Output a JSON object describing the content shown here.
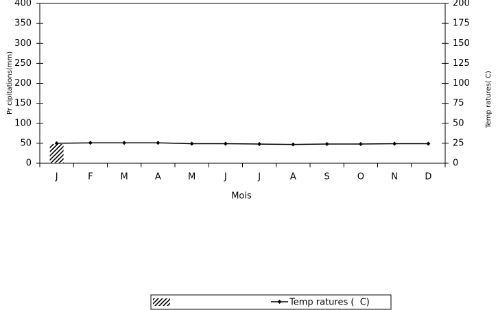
{
  "chart_data": {
    "type": "bar-line",
    "x_label": "Mois",
    "y_label": "Pr cipitations(mm)",
    "y2_label": "Temp ratures( C)",
    "categories": [
      "J",
      "F",
      "M",
      "A",
      "M",
      "J",
      "J",
      "A",
      "S",
      "O",
      "N",
      "D"
    ],
    "series": [
      {
        "type": "bar",
        "color": "#000000",
        "values": [
          48,
          0,
          0,
          0,
          0,
          0,
          0,
          0,
          0,
          0,
          0,
          0
        ]
      },
      {
        "type": "line",
        "name": "Temp ratures (  C)",
        "color": "#000000",
        "axis": "y2",
        "values": [
          25,
          25.5,
          25.5,
          25.5,
          24.5,
          24.5,
          24,
          23.5,
          24,
          24,
          24.5,
          24.5
        ]
      }
    ],
    "ylim": [
      0,
      400
    ],
    "yticks": [
      0,
      50,
      100,
      150,
      200,
      250,
      300,
      350,
      400
    ],
    "y2lim": [
      0,
      200
    ],
    "y2ticks": [
      0,
      25,
      50,
      75,
      100,
      125,
      150,
      175,
      200
    ],
    "legend": "bottom"
  }
}
